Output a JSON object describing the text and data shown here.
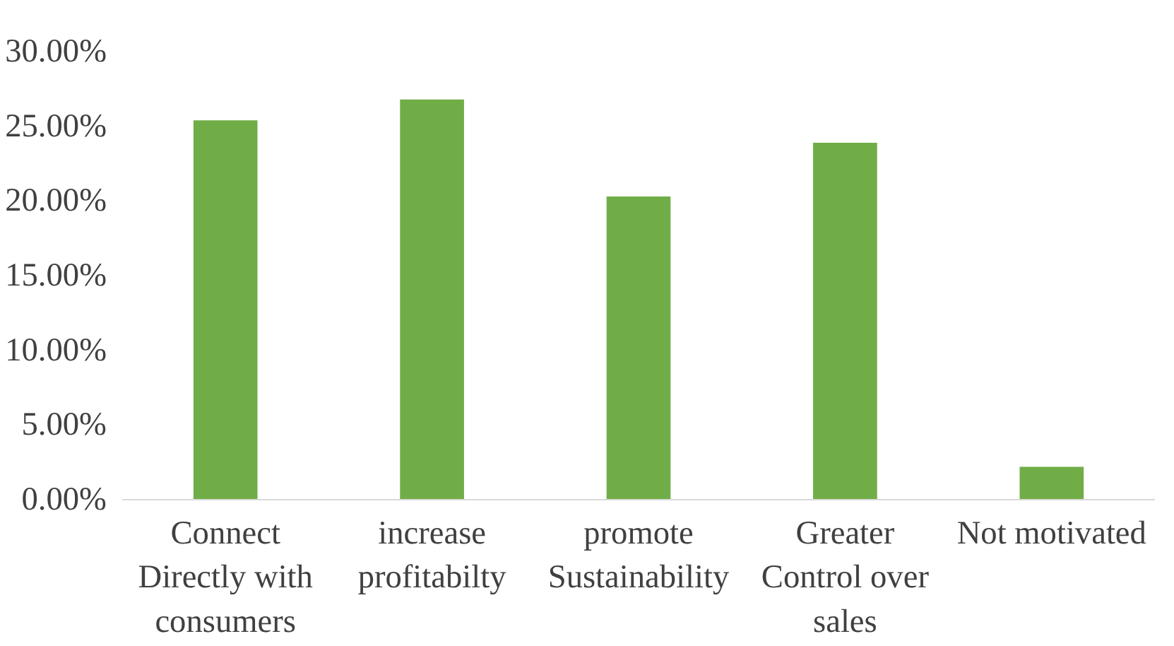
{
  "chart_data": {
    "type": "bar",
    "categories": [
      "Connect Directly with consumers",
      "increase profitabilty",
      "promote Sustainability",
      "Greater Control over sales",
      "Not motivated"
    ],
    "values": [
      25.4,
      26.8,
      20.3,
      23.9,
      2.2
    ],
    "color": "#70ad47",
    "ylim": [
      0,
      30
    ],
    "yticks": [
      {
        "value": 0,
        "label": "0.00%"
      },
      {
        "value": 5,
        "label": "5.00%"
      },
      {
        "value": 10,
        "label": "10.00%"
      },
      {
        "value": 15,
        "label": "15.00%"
      },
      {
        "value": 20,
        "label": "20.00%"
      },
      {
        "value": 25,
        "label": "25.00%"
      },
      {
        "value": 30,
        "label": "30.00%"
      }
    ],
    "grid": false
  }
}
